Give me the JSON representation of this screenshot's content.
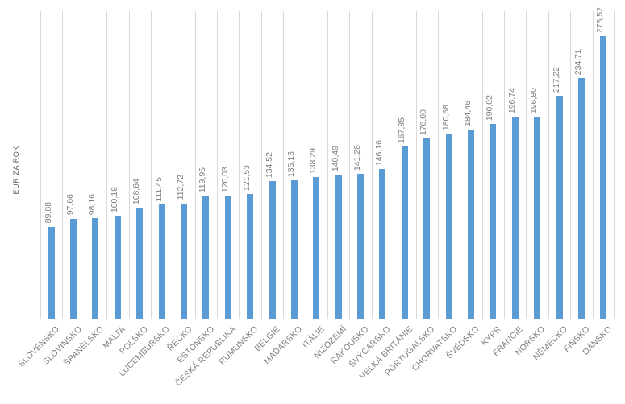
{
  "chart_data": {
    "type": "bar",
    "title": "",
    "xlabel": "",
    "ylabel": "EUR ZA ROK",
    "ylim": [
      0,
      300
    ],
    "grid": "vertical-category-gridlines-only",
    "legend": "none",
    "bar_color": "#5b9bd5",
    "gridline_color": "#d9d9d9",
    "axis_line_color": "#d9d9d9",
    "label_color": "#7f7f7f",
    "axis_title_color": "#595959",
    "categories": [
      "SLOVENSKO",
      "SLOVINSKO",
      "ŠPANĚLSKO",
      "MALTA",
      "POLSKO",
      "LUCEMBURSKO",
      "ŘECKO",
      "ESTONSKO",
      "ČESKÁ REPUBLIKA",
      "RUMUNSKO",
      "BELGIE",
      "MAĎARSKO",
      "ITÁLIE",
      "NIZOZEMÍ",
      "RAKOUSKO",
      "ŠVÝCARSKO",
      "VELKÁ BRITÁNIE",
      "PORTUGALSKO",
      "CHORVATSKO",
      "ŠVÉDSKO",
      "KYPR",
      "FRANCIE",
      "NORSKO",
      "NĚMECKO",
      "FINSKO",
      "DÁNSKO"
    ],
    "values": [
      89.88,
      97.66,
      98.16,
      100.18,
      108.64,
      111.45,
      112.72,
      119.95,
      120.03,
      121.53,
      134.52,
      135.13,
      138.29,
      140.49,
      141.28,
      146.16,
      167.85,
      176.0,
      180.68,
      184.46,
      190.02,
      196.74,
      196.8,
      217.22,
      234.71,
      275.52
    ],
    "value_labels": [
      "89,88",
      "97,66",
      "98,16",
      "100,18",
      "108,64",
      "111,45",
      "112,72",
      "119,95",
      "120,03",
      "121,53",
      "134,52",
      "135,13",
      "138,29",
      "140,49",
      "141,28",
      "146,16",
      "167,85",
      "176,00",
      "180,68",
      "184,46",
      "190,02",
      "196,74",
      "196,80",
      "217,22",
      "234,71",
      "275,52"
    ]
  }
}
